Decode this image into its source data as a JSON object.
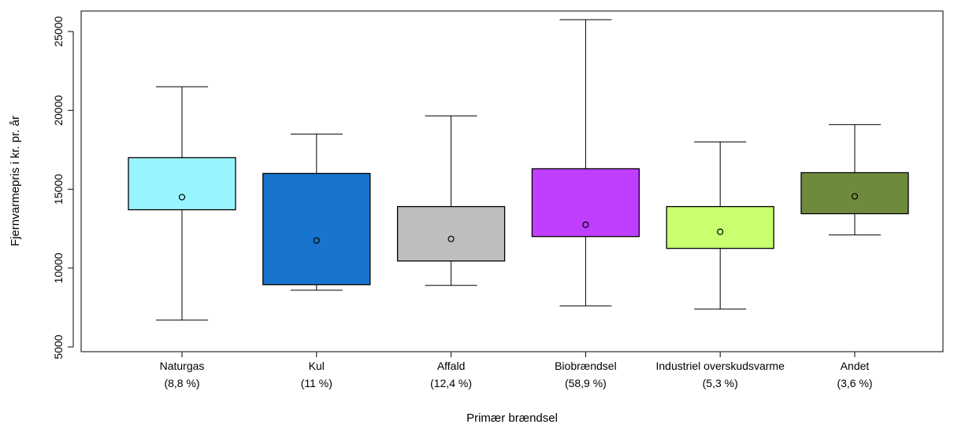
{
  "chart_data": {
    "type": "box",
    "xlabel": "Primær brændsel",
    "ylabel": "Fjernvarmepris i kr. pr. år",
    "ylim": [
      4700,
      26300
    ],
    "yticks": [
      5000,
      10000,
      15000,
      20000,
      25000
    ],
    "grid": false,
    "legend": "none",
    "categories": [
      {
        "name": "Naturgas",
        "share": "(8,8 %)",
        "color": "#98F5FF",
        "min": 6700,
        "q1": 13700,
        "q3": 17000,
        "max": 21500,
        "mean": 14500
      },
      {
        "name": "Kul",
        "share": "(11 %)",
        "color": "#1874CD",
        "min": 8600,
        "q1": 8950,
        "q3": 16000,
        "max": 18500,
        "mean": 11750
      },
      {
        "name": "Affald",
        "share": "(12,4 %)",
        "color": "#BEBEBE",
        "min": 8900,
        "q1": 10450,
        "q3": 13900,
        "max": 19650,
        "mean": 11850
      },
      {
        "name": "Biobrændsel",
        "share": "(58,9 %)",
        "color": "#BF3EFF",
        "min": 7600,
        "q1": 12000,
        "q3": 16300,
        "max": 25750,
        "mean": 12750
      },
      {
        "name": "Industriel overskudsvarme",
        "share": "(5,3 %)",
        "color": "#CAFF70",
        "min": 7400,
        "q1": 11250,
        "q3": 13900,
        "max": 18000,
        "mean": 12300
      },
      {
        "name": "Andet",
        "share": "(3,6 %)",
        "color": "#6E8B3D",
        "min": 12100,
        "q1": 13450,
        "q3": 16050,
        "max": 19100,
        "mean": 14550
      }
    ]
  }
}
